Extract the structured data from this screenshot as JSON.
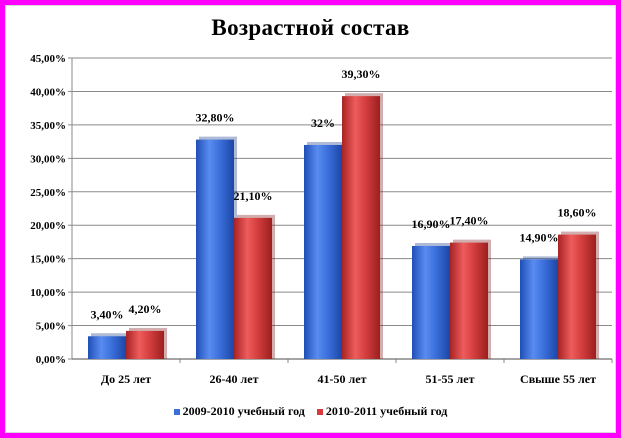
{
  "chart_data": {
    "type": "bar",
    "title": "Возрастной состав",
    "categories": [
      "До 25 лет",
      "26-40 лет",
      "41-50 лет",
      "51-55 лет",
      "Свыше 55 лет"
    ],
    "series": [
      {
        "name": "2009-2010 учебный год",
        "color": "#3a6fd6",
        "values": [
          3.4,
          32.8,
          32,
          16.9,
          14.9
        ],
        "labels": [
          "3,40%",
          "32,80%",
          "32%",
          "16,90%",
          "14,90%"
        ]
      },
      {
        "name": "2010-2011 учебный год",
        "color": "#d63a3a",
        "values": [
          4.2,
          21.1,
          39.3,
          17.4,
          18.6
        ],
        "labels": [
          "4,20%",
          "21,10%",
          "39,30%",
          "17,40%",
          "18,60%"
        ]
      }
    ],
    "ylim": [
      0,
      45
    ],
    "yticks": [
      0,
      5,
      10,
      15,
      20,
      25,
      30,
      35,
      40,
      45
    ],
    "ytick_labels": [
      "0,00%",
      "5,00%",
      "10,00%",
      "15,00%",
      "20,00%",
      "25,00%",
      "30,00%",
      "35,00%",
      "40,00%",
      "45,00%"
    ],
    "grid": true,
    "legend_position": "bottom"
  }
}
